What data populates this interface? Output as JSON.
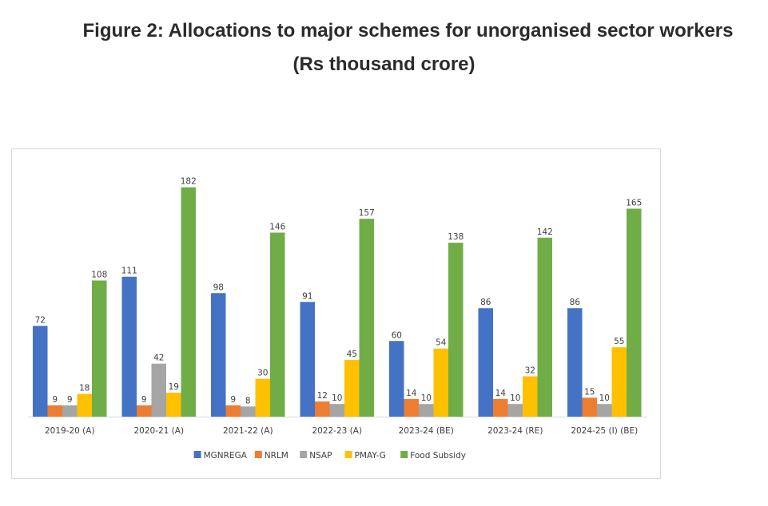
{
  "title_line1": "Figure 2: Allocations to major schemes for unorganised sector workers",
  "title_line2": "(Rs thousand crore)",
  "chart_data": {
    "type": "bar",
    "title": "Figure 2: Allocations to major schemes for unorganised sector workers (Rs thousand crore)",
    "xlabel": "",
    "ylabel": "",
    "ylim": [
      0,
      190
    ],
    "grid": false,
    "legend_position": "bottom",
    "data_labels": true,
    "categories": [
      "2019-20 (A)",
      "2020-21 (A)",
      "2021-22 (A)",
      "2022-23 (A)",
      "2023-24 (BE)",
      "2023-24 (RE)",
      "2024-25 (I) (BE)"
    ],
    "series": [
      {
        "name": "MGNREGA",
        "color": "#4472C4",
        "values": [
          72,
          111,
          98,
          91,
          60,
          86,
          86
        ]
      },
      {
        "name": "NRLM",
        "color": "#ED7D31",
        "values": [
          9,
          9,
          9,
          12,
          14,
          14,
          15
        ]
      },
      {
        "name": "NSAP",
        "color": "#A5A5A5",
        "values": [
          9,
          42,
          8,
          10,
          10,
          10,
          10
        ]
      },
      {
        "name": "PMAY-G",
        "color": "#FFC000",
        "values": [
          18,
          19,
          30,
          45,
          54,
          32,
          55
        ]
      },
      {
        "name": "Food Subsidy",
        "color": "#70AD47",
        "values": [
          108,
          182,
          146,
          157,
          138,
          142,
          165
        ]
      }
    ]
  }
}
